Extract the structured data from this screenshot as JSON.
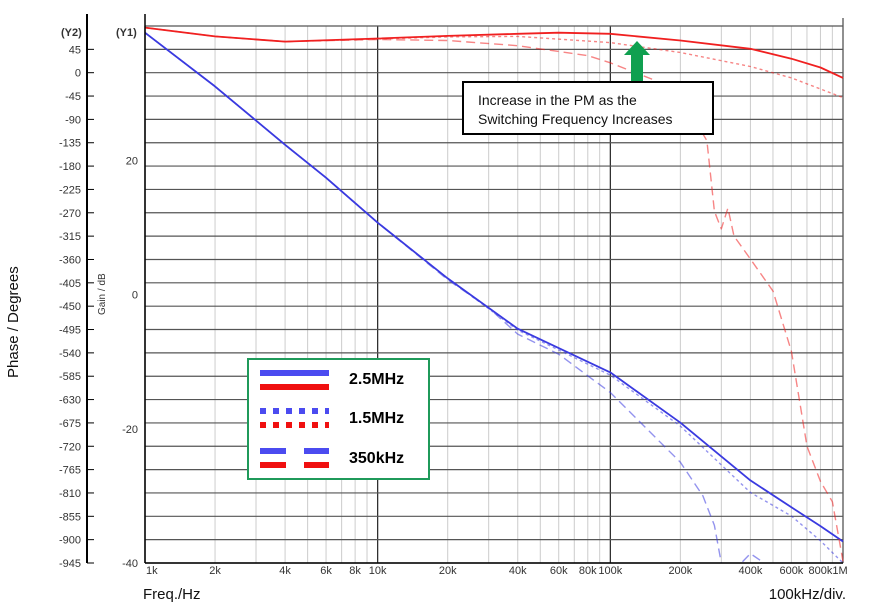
{
  "chart_data": {
    "type": "line",
    "xlabel": "Freq./Hz",
    "x_scale_note": "100kHz/div.",
    "y1_label": "Gain / dB",
    "y2_label": "Phase / Degrees",
    "y1_axis_tag": "(Y1)",
    "y2_axis_tag": "(Y2)",
    "x_scale": "log",
    "xlim": [
      1000,
      1000000
    ],
    "y1lim": [
      -40,
      40
    ],
    "y2lim": [
      -945,
      90
    ],
    "x_ticks": [
      "1k",
      "2k",
      "4k",
      "6k",
      "8k",
      "10k",
      "20k",
      "40k",
      "60k",
      "80k",
      "100k",
      "200k",
      "400k",
      "600k",
      "800k",
      "1M"
    ],
    "x_tick_values": [
      1000,
      2000,
      4000,
      6000,
      8000,
      10000,
      20000,
      40000,
      60000,
      80000,
      100000,
      200000,
      400000,
      600000,
      800000,
      1000000
    ],
    "y1_ticks": [
      20,
      0,
      -20,
      -40
    ],
    "y2_ticks": [
      45,
      0,
      -45,
      -90,
      -135,
      -180,
      -225,
      -270,
      -315,
      -360,
      -405,
      -450,
      -495,
      -540,
      -585,
      -630,
      -675,
      -720,
      -765,
      -810,
      -855,
      -900,
      -945
    ],
    "grid": true,
    "legend_placement": "bottom-left",
    "colors": {
      "gain": "#3a3ae0",
      "phase": "#f02020",
      "legend_border": "#1f9a5a",
      "arrow": "#10a050"
    },
    "series": [
      {
        "name": "2.5MHz",
        "quantity": "gain",
        "axis": "y1",
        "style": "solid",
        "x": [
          1000,
          2000,
          4000,
          6000,
          10000,
          20000,
          40000,
          100000,
          200000,
          400000,
          600000,
          800000,
          1000000
        ],
        "y": [
          39,
          31,
          22.3,
          17.4,
          10.7,
          2.4,
          -5.1,
          -11.6,
          -19.1,
          -27.7,
          -31.7,
          -34.5,
          -36.8
        ]
      },
      {
        "name": "1.5MHz",
        "quantity": "gain",
        "axis": "y1",
        "style": "dotted",
        "x": [
          1000,
          2000,
          4000,
          6000,
          10000,
          20000,
          40000,
          100000,
          200000,
          400000,
          600000,
          800000,
          1000000
        ],
        "y": [
          39,
          31,
          22.3,
          17.4,
          10.7,
          2.4,
          -5.3,
          -12,
          -19.6,
          -29.5,
          -33,
          -36.7,
          -40
        ]
      },
      {
        "name": "350kHz",
        "quantity": "gain",
        "axis": "y1",
        "style": "dashed",
        "x": [
          1000,
          2000,
          4000,
          6000,
          10000,
          20000,
          30000,
          40000,
          60000,
          100000,
          200000,
          250000,
          280000,
          300000
        ],
        "y": [
          39,
          31,
          22.3,
          17.4,
          10.7,
          2.2,
          -2,
          -5.9,
          -8.9,
          -14.6,
          -25,
          -30,
          -34.4,
          -40
        ]
      },
      {
        "name": "350kHz",
        "quantity": "gain",
        "axis": "y1",
        "style": "dashed",
        "x": [
          370000,
          400000,
          450000
        ],
        "y": [
          -39.8,
          -38.6,
          -39.8
        ]
      },
      {
        "name": "2.5MHz",
        "quantity": "phase",
        "axis": "y2",
        "style": "solid",
        "x": [
          1000,
          2000,
          4000,
          10000,
          20000,
          40000,
          60000,
          100000,
          200000,
          400000,
          600000,
          800000,
          1000000
        ],
        "y": [
          87,
          70,
          60,
          66,
          71,
          75,
          77,
          75,
          62,
          46,
          27,
          10,
          -10
        ]
      },
      {
        "name": "1.5MHz",
        "quantity": "phase",
        "axis": "y2",
        "style": "dotted",
        "x": [
          1000,
          2000,
          4000,
          10000,
          20000,
          40000,
          100000,
          200000,
          400000,
          600000,
          1000000
        ],
        "y": [
          87,
          70,
          60,
          65,
          69,
          70,
          58,
          39,
          12,
          -10,
          -48
        ]
      },
      {
        "name": "350kHz",
        "quantity": "phase",
        "axis": "y2",
        "style": "dashed",
        "x": [
          1000,
          2000,
          4000,
          10000,
          20000,
          40000,
          80000,
          100000,
          150000,
          200000,
          260000,
          280000,
          300000,
          320000,
          340000,
          400000,
          500000,
          600000,
          700000,
          800000,
          900000,
          1000000
        ],
        "y": [
          87,
          70,
          60,
          64,
          62,
          52,
          33,
          19,
          -12,
          -44,
          -131,
          -267,
          -301,
          -261,
          -315,
          -359,
          -421,
          -537,
          -720,
          -788,
          -827,
          -942
        ]
      }
    ],
    "annotation": {
      "line1": "Increase in the PM as the",
      "line2": "Switching Frequency Increases"
    },
    "legend": [
      {
        "label": "2.5MHz",
        "style": "solid"
      },
      {
        "label": "1.5MHz",
        "style": "dotted"
      },
      {
        "label": "350kHz",
        "style": "dashed"
      }
    ]
  }
}
